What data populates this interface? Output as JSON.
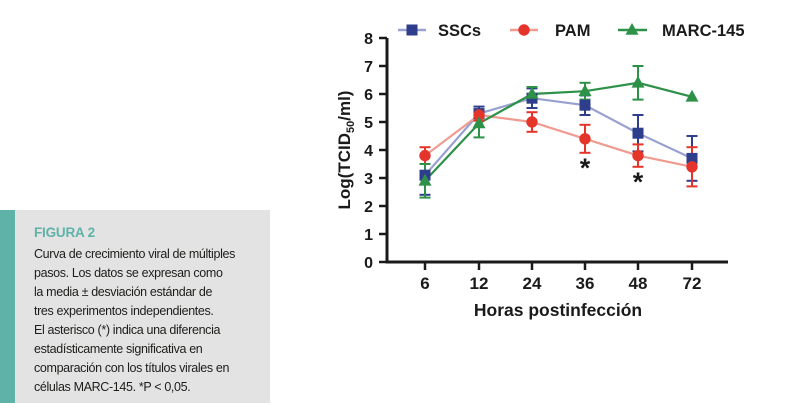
{
  "colors": {
    "teal": "#5fb2a8",
    "caption_bg": "#e3e3e3",
    "text": "#1d1d1b",
    "axis": "#1a1a1a"
  },
  "figure_caption": {
    "title": "FIGURA 2",
    "lines": [
      "Curva de crecimiento viral de múltiples",
      "pasos. Los datos se expresan como",
      "la media ± desviación estándar de",
      "tres experimentos independientes.",
      "El asterisco (*) indica una diferencia",
      "estadísticamente significativa en",
      "comparación con los títulos virales en",
      "células MARC-145. *P < 0,05."
    ]
  },
  "chart_data": {
    "type": "line",
    "title": "",
    "xlabel": "Horas postinfección",
    "ylabel": "Log(TCID50/ml)",
    "ylabel_parts": {
      "pre": "Log(TCID",
      "sub": "50",
      "post": "/ml)"
    },
    "categories": [
      "6",
      "12",
      "24",
      "36",
      "48",
      "72"
    ],
    "ylim": [
      0,
      8
    ],
    "yticks": [
      "0",
      "1",
      "2",
      "3",
      "4",
      "5",
      "6",
      "7",
      "8"
    ],
    "grid": false,
    "legend_position": "top",
    "error_bars": "standard deviation",
    "series": [
      {
        "name": "SSCs",
        "marker": "square",
        "color": "#2e3d8c",
        "line_color": "#98a0cf",
        "values": [
          3.1,
          5.3,
          5.85,
          5.6,
          4.6,
          3.7
        ],
        "errors": [
          0.7,
          0.25,
          0.35,
          0.35,
          0.65,
          0.8
        ]
      },
      {
        "name": "PAM",
        "marker": "circle",
        "color": "#e5352b",
        "line_color": "#f09b90",
        "values": [
          3.8,
          5.25,
          5.0,
          4.4,
          3.8,
          3.4
        ],
        "errors": [
          0.3,
          0.2,
          0.35,
          0.5,
          0.4,
          0.7
        ]
      },
      {
        "name": "MARC-145",
        "marker": "triangle",
        "color": "#2e9148",
        "line_color": "#2e9148",
        "values": [
          2.9,
          4.95,
          6.0,
          6.1,
          6.4,
          5.9
        ],
        "errors": [
          0.6,
          0.5,
          0.25,
          0.3,
          0.6,
          0
        ]
      }
    ],
    "annotations": [
      {
        "symbol": "*",
        "series": "PAM",
        "x_index": 3
      },
      {
        "symbol": "*",
        "series": "PAM",
        "x_index": 4
      }
    ]
  }
}
